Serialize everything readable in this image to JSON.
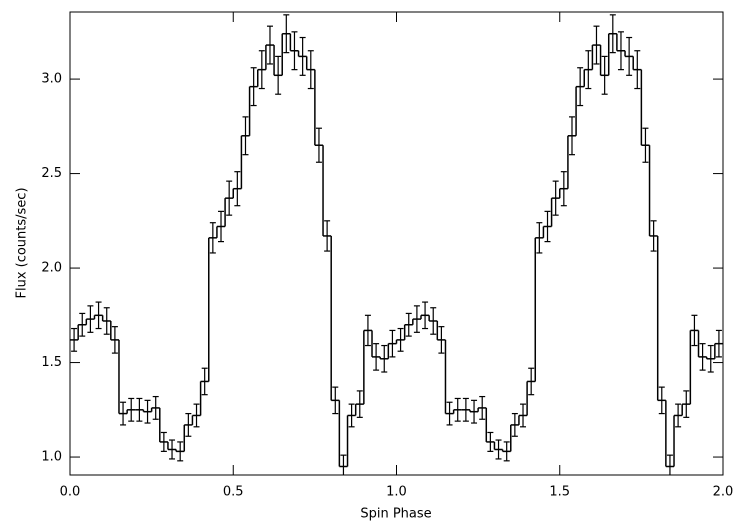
{
  "chart_data": {
    "type": "histogram",
    "xlabel": "Spin Phase",
    "ylabel": "Flux (counts/sec)",
    "bins": [
      0,
      0.025,
      0.05,
      0.075,
      0.1,
      0.125,
      0.15,
      0.175,
      0.2,
      0.225,
      0.25,
      0.275,
      0.3,
      0.325,
      0.35,
      0.375,
      0.4,
      0.425,
      0.45,
      0.475,
      0.5,
      0.525,
      0.55,
      0.575,
      0.6,
      0.625,
      0.65,
      0.675,
      0.7,
      0.725,
      0.75,
      0.775,
      0.8,
      0.825,
      0.85,
      0.875,
      0.9,
      0.925,
      0.95,
      0.975,
      1,
      1.025,
      1.05,
      1.075,
      1.1,
      1.125,
      1.15,
      1.175,
      1.2,
      1.225,
      1.25,
      1.275,
      1.3,
      1.325,
      1.35,
      1.375,
      1.4,
      1.425,
      1.45,
      1.475,
      1.5,
      1.525,
      1.55,
      1.575,
      1.6,
      1.625,
      1.65,
      1.675,
      1.7,
      1.725,
      1.75,
      1.775,
      1.8,
      1.825,
      1.85,
      1.875,
      1.9,
      1.925,
      1.95,
      1.975,
      2
    ],
    "values": [
      1.62,
      1.7,
      1.73,
      1.75,
      1.72,
      1.62,
      1.23,
      1.25,
      1.25,
      1.24,
      1.26,
      1.08,
      1.04,
      1.03,
      1.17,
      1.22,
      1.4,
      2.16,
      2.22,
      2.37,
      2.42,
      2.7,
      2.96,
      3.05,
      3.18,
      3.02,
      3.24,
      3.15,
      3.12,
      3.05,
      2.65,
      2.17,
      1.3,
      0.95,
      1.22,
      1.28,
      1.67,
      1.53,
      1.52,
      1.6,
      1.62,
      1.7,
      1.73,
      1.75,
      1.72,
      1.62,
      1.23,
      1.25,
      1.25,
      1.24,
      1.26,
      1.08,
      1.04,
      1.03,
      1.17,
      1.22,
      1.4,
      2.16,
      2.22,
      2.37,
      2.42,
      2.7,
      2.96,
      3.05,
      3.18,
      3.02,
      3.24,
      3.15,
      3.12,
      3.05,
      2.65,
      2.17,
      1.3,
      0.95,
      1.22,
      1.28,
      1.67,
      1.53,
      1.52,
      1.6
    ],
    "errors": [
      0.06,
      0.06,
      0.07,
      0.07,
      0.07,
      0.07,
      0.06,
      0.06,
      0.06,
      0.06,
      0.06,
      0.05,
      0.05,
      0.05,
      0.06,
      0.06,
      0.07,
      0.08,
      0.08,
      0.09,
      0.09,
      0.1,
      0.1,
      0.1,
      0.1,
      0.1,
      0.1,
      0.1,
      0.1,
      0.1,
      0.09,
      0.08,
      0.07,
      0.06,
      0.06,
      0.07,
      0.08,
      0.07,
      0.07,
      0.07,
      0.06,
      0.06,
      0.07,
      0.07,
      0.07,
      0.07,
      0.06,
      0.06,
      0.06,
      0.06,
      0.06,
      0.05,
      0.05,
      0.05,
      0.06,
      0.06,
      0.07,
      0.08,
      0.08,
      0.09,
      0.09,
      0.1,
      0.1,
      0.1,
      0.1,
      0.1,
      0.1,
      0.1,
      0.1,
      0.1,
      0.09,
      0.08,
      0.07,
      0.06,
      0.06,
      0.07,
      0.08,
      0.07,
      0.07,
      0.07
    ],
    "color": "#000000",
    "xlim": [
      0,
      2
    ],
    "xticks": [
      {
        "value": 0,
        "label": "0.0"
      },
      0.5,
      {
        "value": 1,
        "label": "1.0"
      },
      1.5,
      {
        "value": 2,
        "label": "2.0"
      }
    ],
    "ylim": [
      0.905,
      3.355
    ],
    "yticks": [
      {
        "value": 1,
        "label": "1.0"
      },
      1.5,
      {
        "value": 2,
        "label": "2.0"
      },
      2.5,
      {
        "value": 3,
        "label": "3.0"
      }
    ]
  }
}
